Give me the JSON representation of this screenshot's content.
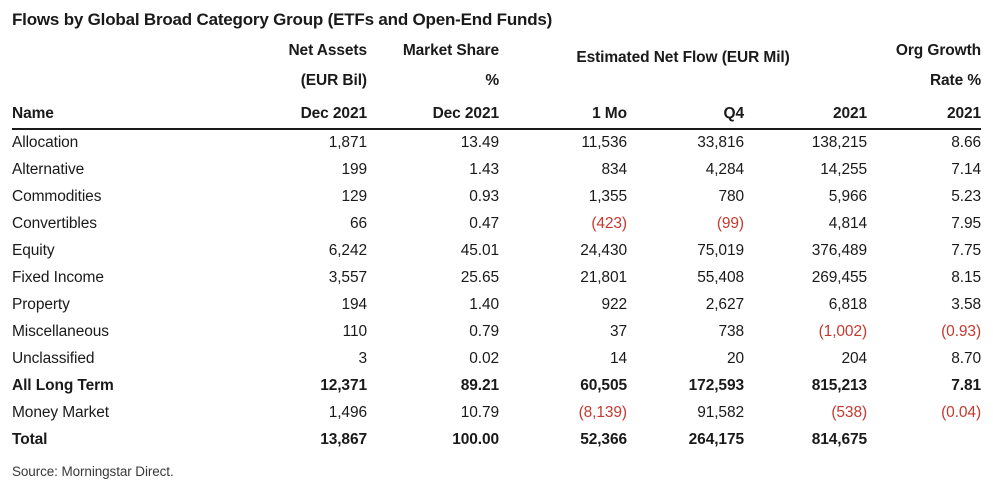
{
  "title": "Flows by Global Broad Category Group (ETFs and Open-End Funds)",
  "source": "Source: Morningstar Direct.",
  "colors": {
    "negative": "#c23a31",
    "ink": "#1a1a1a"
  },
  "header": {
    "name": "Name",
    "net_assets": {
      "l1": "Net Assets",
      "l2": "(EUR Bil)",
      "l3": "Dec 2021"
    },
    "market_share": {
      "l1": "Market Share",
      "l2": "%",
      "l3": "Dec 2021"
    },
    "net_flow_group": "Estimated Net Flow (EUR Mil)",
    "flow_1mo": "1 Mo",
    "flow_q4": "Q4",
    "flow_2021": "2021",
    "org_growth": {
      "l1": "Org Growth",
      "l2": "Rate %",
      "l3": "2021"
    }
  },
  "chart_data": {
    "type": "table",
    "title": "Flows by Global Broad Category Group (ETFs and Open-End Funds)",
    "columns": [
      "Name",
      "Net Assets (EUR Bil) Dec 2021",
      "Market Share % Dec 2021",
      "Estimated Net Flow (EUR Mil) 1 Mo",
      "Estimated Net Flow (EUR Mil) Q4",
      "Estimated Net Flow (EUR Mil) 2021",
      "Org Growth Rate % 2021"
    ],
    "rows": [
      {
        "name": "Allocation",
        "bold": false,
        "cells": [
          "1,871",
          "13.49",
          "11,536",
          "33,816",
          "138,215",
          "8.66"
        ]
      },
      {
        "name": "Alternative",
        "bold": false,
        "cells": [
          "199",
          "1.43",
          "834",
          "4,284",
          "14,255",
          "7.14"
        ]
      },
      {
        "name": "Commodities",
        "bold": false,
        "cells": [
          "129",
          "0.93",
          "1,355",
          "780",
          "5,966",
          "5.23"
        ]
      },
      {
        "name": "Convertibles",
        "bold": false,
        "cells": [
          "66",
          "0.47",
          "(423)",
          "(99)",
          "4,814",
          "7.95"
        ]
      },
      {
        "name": "Equity",
        "bold": false,
        "cells": [
          "6,242",
          "45.01",
          "24,430",
          "75,019",
          "376,489",
          "7.75"
        ]
      },
      {
        "name": "Fixed Income",
        "bold": false,
        "cells": [
          "3,557",
          "25.65",
          "21,801",
          "55,408",
          "269,455",
          "8.15"
        ]
      },
      {
        "name": "Property",
        "bold": false,
        "cells": [
          "194",
          "1.40",
          "922",
          "2,627",
          "6,818",
          "3.58"
        ]
      },
      {
        "name": "Miscellaneous",
        "bold": false,
        "cells": [
          "110",
          "0.79",
          "37",
          "738",
          "(1,002)",
          "(0.93)"
        ]
      },
      {
        "name": "Unclassified",
        "bold": false,
        "cells": [
          "3",
          "0.02",
          "14",
          "20",
          "204",
          "8.70"
        ]
      },
      {
        "name": "All Long Term",
        "bold": true,
        "cells": [
          "12,371",
          "89.21",
          "60,505",
          "172,593",
          "815,213",
          "7.81"
        ]
      },
      {
        "name": "Money Market",
        "bold": false,
        "cells": [
          "1,496",
          "10.79",
          "(8,139)",
          "91,582",
          "(538)",
          "(0.04)"
        ]
      },
      {
        "name": "Total",
        "bold": true,
        "cells": [
          "13,867",
          "100.00",
          "52,366",
          "264,175",
          "814,675",
          ""
        ]
      }
    ]
  }
}
